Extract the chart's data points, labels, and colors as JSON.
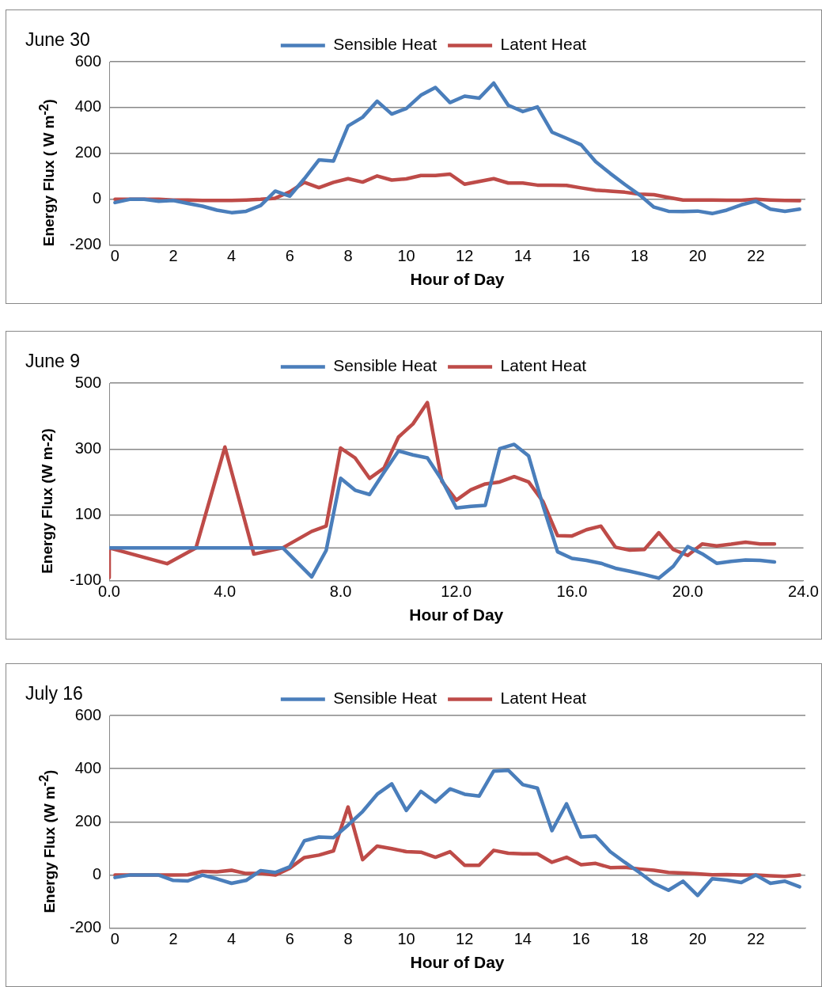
{
  "chart_data": [
    {
      "type": "line",
      "title": "June 30",
      "xlabel": "Hour of Day",
      "ylabel": "Energy Flux ( W m$^{-2}$)",
      "x": [
        0,
        0.5,
        1,
        1.5,
        2,
        2.5,
        3,
        3.5,
        4,
        4.5,
        5,
        5.5,
        6,
        6.5,
        7,
        7.5,
        8,
        8.5,
        9,
        9.5,
        10,
        10.5,
        11,
        11.5,
        12,
        12.5,
        13,
        13.5,
        14,
        14.5,
        15,
        15.5,
        16,
        16.5,
        17,
        17.5,
        18,
        18.5,
        19,
        19.5,
        20,
        20.5,
        21,
        21.5,
        22,
        22.5,
        23,
        23.5
      ],
      "series": [
        {
          "name": "Sensible Heat",
          "color": "#4a7ebb",
          "values": [
            -14,
            0,
            0,
            -8,
            -5,
            -18,
            -30,
            -47,
            -58,
            -52,
            -27,
            36,
            14,
            90,
            172,
            167,
            320,
            358,
            428,
            372,
            396,
            454,
            488,
            422,
            450,
            441,
            507,
            410,
            383,
            403,
            293,
            266,
            238,
            164,
            113,
            65,
            20,
            -34,
            -52,
            -53,
            -51,
            -62,
            -47,
            -24,
            -8,
            -43,
            -52,
            -43
          ]
        },
        {
          "name": "Latent Heat",
          "color": "#be4b48",
          "values": [
            0,
            0,
            0,
            0,
            -3,
            -3,
            -5,
            -5,
            -5,
            -3,
            0,
            5,
            33,
            74,
            51,
            74,
            90,
            75,
            102,
            84,
            89,
            104,
            104,
            110,
            66,
            78,
            90,
            71,
            71,
            62,
            62,
            61,
            50,
            40,
            36,
            31,
            23,
            20,
            8,
            -3,
            -3,
            -3,
            -4,
            -4,
            0,
            -3,
            -5,
            -6
          ]
        }
      ],
      "xlim": [
        -0.2,
        23.7
      ],
      "xticks": [
        0,
        2,
        4,
        6,
        8,
        10,
        12,
        14,
        16,
        18,
        20,
        22
      ],
      "ylim": [
        -200,
        600
      ],
      "yticks": [
        -200,
        0,
        200,
        400,
        600
      ],
      "grid": "y",
      "legend": "top",
      "marker": "none"
    },
    {
      "type": "line",
      "title": "June 9",
      "xlabel": "Hour of Day",
      "ylabel": "Energy Flux (W m-2)",
      "series": [
        {
          "name": "Sensible Heat",
          "color": "#4a7ebb",
          "x": [
            0,
            1,
            2,
            3,
            4,
            5,
            6,
            7,
            7.5,
            8,
            8.5,
            9,
            9.5,
            10,
            10.5,
            11,
            11.5,
            12,
            12.5,
            13,
            13.5,
            14,
            14.5,
            15,
            15.5,
            16,
            16.5,
            17,
            17.5,
            18,
            18.5,
            19,
            19.5,
            20,
            20.5,
            21,
            21.5,
            22,
            22.5,
            23
          ],
          "values": [
            0,
            0,
            0,
            0,
            0,
            0,
            0,
            -88,
            -8,
            211,
            175,
            162,
            229,
            294,
            282,
            273,
            206,
            121,
            126,
            129,
            301,
            314,
            279,
            127,
            -12,
            -32,
            -38,
            -47,
            -62,
            -71,
            -81,
            -92,
            -56,
            4,
            -18,
            -47,
            -41,
            -37,
            -38,
            -43
          ]
        },
        {
          "name": "Latent Heat",
          "color": "#be4b48",
          "x": [
            0,
            0,
            2,
            3,
            4,
            5,
            6,
            7,
            7.5,
            8,
            8.5,
            9,
            9.5,
            10,
            10.5,
            11,
            11.5,
            12,
            12.5,
            13,
            13.5,
            14,
            14.5,
            15,
            15.5,
            16,
            16.5,
            17,
            17.5,
            18,
            18.5,
            19,
            19.5,
            20,
            20.5,
            21,
            21.5,
            22,
            22.5,
            23
          ],
          "values": [
            -90,
            0,
            -48,
            0,
            306,
            -19,
            0,
            50,
            66,
            303,
            273,
            211,
            242,
            336,
            376,
            441,
            202,
            145,
            176,
            194,
            200,
            216,
            200,
            140,
            37,
            36,
            55,
            66,
            2,
            -7,
            -5,
            46,
            -5,
            -23,
            12,
            6,
            11,
            17,
            12,
            12
          ]
        }
      ],
      "xlim": [
        0,
        24
      ],
      "xticks": [
        {
          "value": 0,
          "label": "0.0"
        },
        {
          "value": 4,
          "label": "4.0"
        },
        {
          "value": 8,
          "label": "8.0"
        },
        {
          "value": 12,
          "label": "12.0"
        },
        {
          "value": 16,
          "label": "16.0"
        },
        {
          "value": 20,
          "label": "20.0"
        },
        {
          "value": 24,
          "label": "24.0"
        }
      ],
      "ylim": [
        -100,
        500
      ],
      "yticks": [
        -100,
        100,
        300,
        500
      ],
      "grid": "y",
      "legend": "top",
      "marker": "none",
      "ref_lines": [
        {
          "axis": "y",
          "value": 0,
          "color": "#888888"
        }
      ]
    },
    {
      "type": "line",
      "title": "July 16",
      "xlabel": "Hour of Day",
      "ylabel": "Energy Flux (W m$^{-2}$)",
      "x": [
        0,
        0.5,
        1,
        1.5,
        2,
        2.5,
        3,
        3.5,
        4,
        4.5,
        5,
        5.5,
        6,
        6.5,
        7,
        7.5,
        8,
        8.5,
        9,
        9.5,
        10,
        10.5,
        11,
        11.5,
        12,
        12.5,
        13,
        13.5,
        14,
        14.5,
        15,
        15.5,
        16,
        16.5,
        17,
        17.5,
        18,
        18.5,
        19,
        19.5,
        20,
        20.5,
        21,
        21.5,
        22,
        22.5,
        23,
        23.5
      ],
      "series": [
        {
          "name": "Sensible Heat",
          "color": "#4a7ebb",
          "values": [
            -9,
            0,
            0,
            0,
            -20,
            -22,
            0,
            -14,
            -31,
            -20,
            17,
            10,
            31,
            129,
            143,
            141,
            188,
            239,
            304,
            343,
            243,
            315,
            275,
            324,
            304,
            297,
            391,
            394,
            340,
            327,
            167,
            268,
            143,
            147,
            88,
            48,
            10,
            -31,
            -57,
            -23,
            -77,
            -14,
            -19,
            -28,
            0,
            -31,
            -23,
            -44
          ]
        },
        {
          "name": "Latent Heat",
          "color": "#be4b48",
          "values": [
            0,
            0,
            0,
            0,
            0,
            1,
            14,
            12,
            18,
            6,
            6,
            0,
            26,
            66,
            75,
            91,
            256,
            58,
            109,
            99,
            88,
            86,
            67,
            88,
            37,
            37,
            93,
            82,
            80,
            80,
            48,
            67,
            39,
            44,
            28,
            29,
            23,
            18,
            10,
            8,
            5,
            1,
            2,
            0,
            0,
            -3,
            -5,
            0
          ]
        }
      ],
      "xlim": [
        -0.2,
        23.7
      ],
      "xticks": [
        0,
        2,
        4,
        6,
        8,
        10,
        12,
        14,
        16,
        18,
        20,
        22
      ],
      "ylim": [
        -200,
        600
      ],
      "yticks": [
        -200,
        0,
        200,
        400,
        600
      ],
      "grid": "y",
      "legend": "top",
      "marker": "none"
    }
  ]
}
